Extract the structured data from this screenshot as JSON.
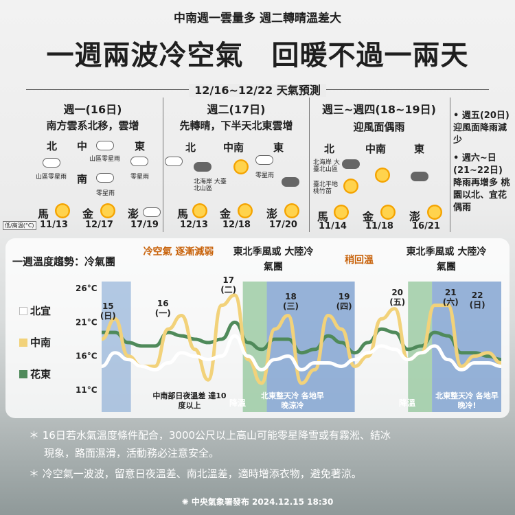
{
  "header": {
    "subtitle": "中南週一雲量多 週二轉晴溫差大",
    "title": "一週兩波冷空氣　回暖不過一兩天",
    "forecast_label": "12/16~12/22 天氣預測"
  },
  "forecast": {
    "col1": {
      "day": "週一(16日)",
      "summary": "南方雲系北移，雲增",
      "regions": {
        "north": "北",
        "central": "中",
        "east": "東",
        "south": "南"
      },
      "notes": {
        "north": "山區零星雨",
        "central": "山區零星雨",
        "east": "零星雨",
        "south": "零星雨"
      },
      "cities": [
        {
          "name": "馬",
          "temp": "11/13"
        },
        {
          "name": "金",
          "temp": "12/17"
        },
        {
          "name": "澎",
          "temp": "17/19"
        }
      ],
      "unit_note": "低/高溫(°C)"
    },
    "col2": {
      "day": "週二(17日)",
      "summary": "先轉晴，下半天北東雲增",
      "regions": {
        "north": "北",
        "central": "中南",
        "east": "東"
      },
      "notes": {
        "north": "北海岸 大臺北山區",
        "east": "零星雨"
      },
      "cities": [
        {
          "name": "馬",
          "temp": "12/13"
        },
        {
          "name": "金",
          "temp": "12/18"
        },
        {
          "name": "澎",
          "temp": "17/20"
        }
      ]
    },
    "col3": {
      "day": "週三~週四(18~19日)",
      "summary": "迎風面偶雨",
      "regions": {
        "north": "北",
        "central": "中南",
        "east": "東"
      },
      "notes": {
        "north1": "北海岸 大臺北山區",
        "north2": "臺北平地 桃竹苗"
      },
      "cities": [
        {
          "name": "馬",
          "temp": "11/14"
        },
        {
          "name": "金",
          "temp": "11/18"
        },
        {
          "name": "澎",
          "temp": "16/21"
        }
      ]
    },
    "side": {
      "item1": "週五(20日) 迎風面降雨減少",
      "item2": "週六~日 (21~22日) 降雨再增多 桃園以北、宜花偶雨"
    }
  },
  "chart_panel": {
    "title": "一週溫度趨勢：冷氣團",
    "band_labels": {
      "weakening": "冷空氣 逐漸減弱",
      "ne_monsoon1": "東北季風或 大陸冷氣團",
      "warming": "稍回溫",
      "ne_monsoon2": "東北季風或 大陸冷氣團"
    },
    "bottom_notes": {
      "central_diff": "中南部日夜溫差 達10度以上",
      "cooling1": "降溫",
      "north_cold1": "北東整天冷 各地早晚涼冷",
      "cooling2": "降溫",
      "north_cold2": "北東整天冷 各地早晚冷!"
    },
    "legend": [
      {
        "name": "北宜",
        "color": "#ffffff"
      },
      {
        "name": "中南",
        "color": "#f2d27a"
      },
      {
        "name": "花東",
        "color": "#4f8a5a"
      }
    ]
  },
  "chart_data": {
    "type": "line",
    "ylabel": "",
    "yticks": [
      "26°C",
      "21°C",
      "16°C",
      "11°C"
    ],
    "ylim": [
      10,
      28
    ],
    "day_labels": [
      "15\n(日)",
      "16\n(一)",
      "17\n(二)",
      "18\n(三)",
      "19\n(四)",
      "20\n(五)",
      "21\n(六)",
      "22\n(日)"
    ],
    "x": [
      0,
      0.25,
      0.5,
      0.75,
      1,
      1.25,
      1.5,
      1.75,
      2,
      2.25,
      2.5,
      2.75,
      3,
      3.25,
      3.5,
      3.75,
      4,
      4.25,
      4.5,
      4.75,
      5,
      5.25,
      5.5,
      5.75,
      6,
      5.25,
      6.5,
      6.75,
      7,
      7.25,
      7.5
    ],
    "series": [
      {
        "name": "北宜",
        "color": "#ffffff",
        "values": [
          14.5,
          16.5,
          15.5,
          14.5,
          14.0,
          15.0,
          16.5,
          16.0,
          15.5,
          16.0,
          19.0,
          16.0,
          14.0,
          15.5,
          16.0,
          14.0,
          15.0,
          15.0,
          14.5,
          15.5,
          16.5,
          17.5,
          17.0,
          15.5,
          16.5,
          17.5,
          15.5,
          14.0,
          15.0,
          15.0,
          14.5
        ]
      },
      {
        "name": "中南",
        "color": "#f2d27a",
        "values": [
          18.5,
          21.5,
          16.0,
          14.5,
          14.5,
          20.0,
          22.0,
          17.0,
          12.5,
          23.5,
          25.0,
          15.5,
          12.0,
          20.0,
          22.0,
          12.0,
          14.0,
          22.0,
          20.0,
          14.5,
          16.0,
          21.5,
          23.0,
          15.5,
          16.5,
          23.5,
          23.5,
          14.5,
          16.0,
          16.5,
          15.0
        ]
      },
      {
        "name": "花東",
        "color": "#4f8a5a",
        "values": [
          19.5,
          19.5,
          18.0,
          17.5,
          17.5,
          19.5,
          19.0,
          18.5,
          18.0,
          18.5,
          21.0,
          18.0,
          17.0,
          18.5,
          18.5,
          16.5,
          17.0,
          19.0,
          18.0,
          16.5,
          18.0,
          20.0,
          19.5,
          17.0,
          17.5,
          19.5,
          19.0,
          16.5,
          16.5,
          16.0,
          15.5
        ]
      }
    ]
  },
  "notes": {
    "note1": "＊ 16日若水氣溫度條件配合，3000公尺以上高山可能零星降雪或有霧淞、結冰",
    "note1b": "現象，路面濕滑，活動務必注意安全。",
    "note2": "＊ 冷空氣一波波，留意日夜溫差、南北溫差，適時增添衣物，避免著涼。"
  },
  "footer": {
    "text": "中央氣象署發布 2024.12.15 18:30"
  }
}
